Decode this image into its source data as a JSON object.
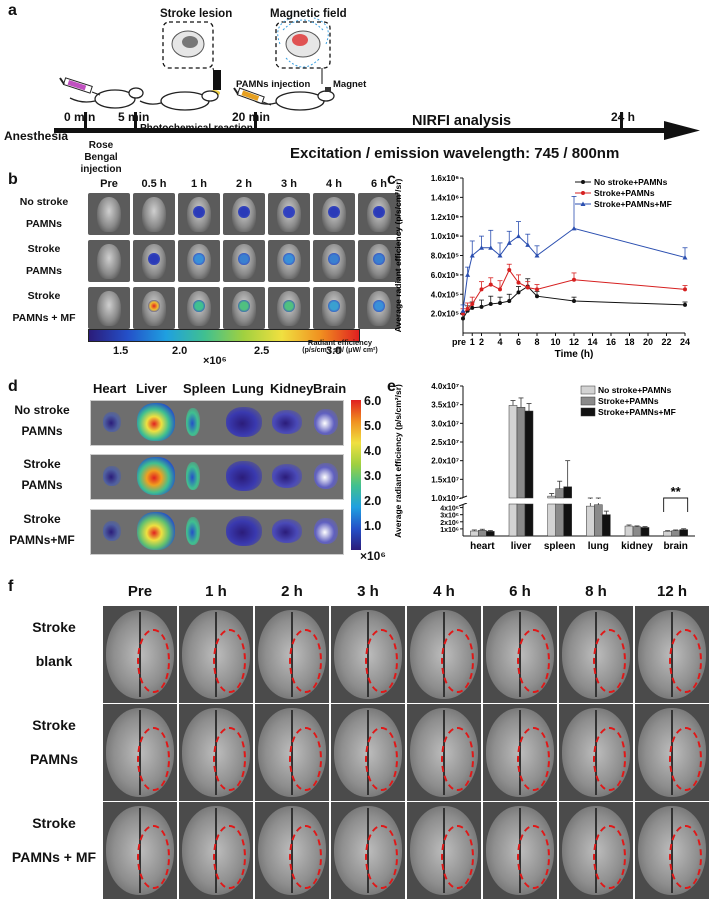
{
  "panel_a": {
    "letter": "a",
    "stroke_lesion": "Stroke lesion",
    "magnetic_field": "Magnetic field",
    "pamns_injection": "PAMNs injection",
    "magnet": "Magnet",
    "t0": "0 min",
    "t5": "5 min",
    "t20": "20 min",
    "t24": "24 h",
    "anesthesia": "Anesthesia",
    "photochemical": "Photochemical reaction",
    "nirfi": "NIRFI analysis",
    "rose_bengal": "Rose Bengal injection",
    "excitation": "Excitation / emission wavelength: 745 / 800nm"
  },
  "panel_b": {
    "letter": "b",
    "columns": [
      "Pre",
      "0.5 h",
      "1 h",
      "2 h",
      "3 h",
      "4 h",
      "6 h"
    ],
    "rows": [
      {
        "l1": "No stroke",
        "l2": "PAMNs"
      },
      {
        "l1": "Stroke",
        "l2": "PAMNs"
      },
      {
        "l1": "Stroke",
        "l2": "PAMNs + MF"
      }
    ],
    "colorbar_ticks": [
      "1.5",
      "2.0",
      "2.5",
      "3.0"
    ],
    "colorbar_unit": "×10⁶",
    "colorbar_title1": "Radiant efficiency",
    "colorbar_title2": "(p/s/cm²/ sr)/ (μW/ cm²)"
  },
  "panel_d": {
    "letter": "d",
    "columns": [
      "Heart",
      "Liver",
      "Spleen",
      "Lung",
      "Kidney",
      "Brain"
    ],
    "rows": [
      {
        "l1": "No stroke",
        "l2": "PAMNs"
      },
      {
        "l1": "Stroke",
        "l2": "PAMNs"
      },
      {
        "l1": "Stroke",
        "l2": "PAMNs+MF"
      }
    ],
    "colorbar_ticks": [
      "6.0",
      "5.0",
      "4.0",
      "3.0",
      "2.0",
      "1.0"
    ],
    "colorbar_unit": "×10⁶"
  },
  "panel_f": {
    "letter": "f",
    "columns": [
      "Pre",
      "1 h",
      "2 h",
      "3 h",
      "4 h",
      "6 h",
      "8 h",
      "12 h"
    ],
    "rows": [
      {
        "l1": "Stroke",
        "l2": "blank"
      },
      {
        "l1": "Stroke",
        "l2": "PAMNs"
      },
      {
        "l1": "Stroke",
        "l2": "PAMNs + MF"
      }
    ]
  },
  "chart_data": [
    {
      "panel": "c",
      "type": "line",
      "ylabel": "Average radiant efficiency (p/s/cm²/sr)",
      "xlabel": "Time (h)",
      "x": [
        0,
        0.5,
        1,
        2,
        3,
        4,
        5,
        6,
        7,
        8,
        12,
        24
      ],
      "xticks": [
        "pre",
        "1",
        "2",
        "4",
        "6",
        "8",
        "10",
        "12",
        "14",
        "16",
        "18",
        "20",
        "22",
        "24"
      ],
      "yticks": [
        "2.0x10⁵",
        "4.0x10⁵",
        "6.0x10⁵",
        "8.0x10⁵",
        "1.0x10⁶",
        "1.2x10⁶",
        "1.4x10⁶",
        "1.6x10⁶"
      ],
      "ylim": [
        0,
        1600000
      ],
      "legend_position": "top-right",
      "series": [
        {
          "name": "No stroke+PAMNs",
          "color": "#111111",
          "values": [
            150000,
            230000,
            260000,
            270000,
            300000,
            310000,
            330000,
            420000,
            480000,
            380000,
            330000,
            290000
          ],
          "err": [
            40000,
            50000,
            60000,
            70000,
            80000,
            60000,
            70000,
            60000,
            80000,
            50000,
            40000,
            30000
          ]
        },
        {
          "name": "Stroke+PAMNs",
          "color": "#d62020",
          "values": [
            200000,
            250000,
            300000,
            450000,
            500000,
            450000,
            650000,
            520000,
            470000,
            450000,
            550000,
            450000
          ],
          "err": [
            50000,
            60000,
            70000,
            80000,
            70000,
            90000,
            60000,
            80000,
            60000,
            50000,
            70000,
            40000
          ]
        },
        {
          "name": "Stroke+PAMNs+MF",
          "color": "#2b4fb0",
          "values": [
            230000,
            600000,
            800000,
            880000,
            880000,
            800000,
            930000,
            1000000,
            910000,
            800000,
            1080000,
            780000
          ],
          "err": [
            60000,
            80000,
            150000,
            120000,
            180000,
            130000,
            120000,
            150000,
            110000,
            100000,
            330000,
            100000
          ]
        }
      ]
    },
    {
      "panel": "e",
      "type": "bar",
      "ylabel": "Average radiant efficiency (p/s/cm²/sr)",
      "categories": [
        "heart",
        "liver",
        "spleen",
        "lung",
        "kidney",
        "brain"
      ],
      "upper_yticks": [
        "1.0x10⁷",
        "1.5x10⁷",
        "2.0x10⁷",
        "2.5x10⁷",
        "3.0x10⁷",
        "3.5x10⁷",
        "4.0x10⁷"
      ],
      "lower_yticks": [
        "1x10⁶",
        "2x10⁶",
        "3x10⁶",
        "4x10⁶"
      ],
      "axis_break": [
        5000000,
        10000000
      ],
      "annotation": "**",
      "legend_position": "top-right",
      "series": [
        {
          "name": "No stroke+PAMNs",
          "color": "#d3d3d3",
          "values": [
            700000,
            34800000,
            10500000,
            4200000,
            1400000,
            650000
          ],
          "err": [
            150000,
            1300000,
            700000,
            400000,
            150000,
            100000
          ]
        },
        {
          "name": "Stroke+PAMNs",
          "color": "#8a8a8a",
          "values": [
            800000,
            34300000,
            12500000,
            4400000,
            1300000,
            750000
          ],
          "err": [
            150000,
            2500000,
            2000000,
            300000,
            120000,
            100000
          ]
        },
        {
          "name": "Stroke+PAMNs+MF",
          "color": "#111111",
          "values": [
            650000,
            33300000,
            13000000,
            3000000,
            1200000,
            900000
          ],
          "err": [
            120000,
            2000000,
            7000000,
            500000,
            120000,
            120000
          ]
        }
      ]
    }
  ]
}
